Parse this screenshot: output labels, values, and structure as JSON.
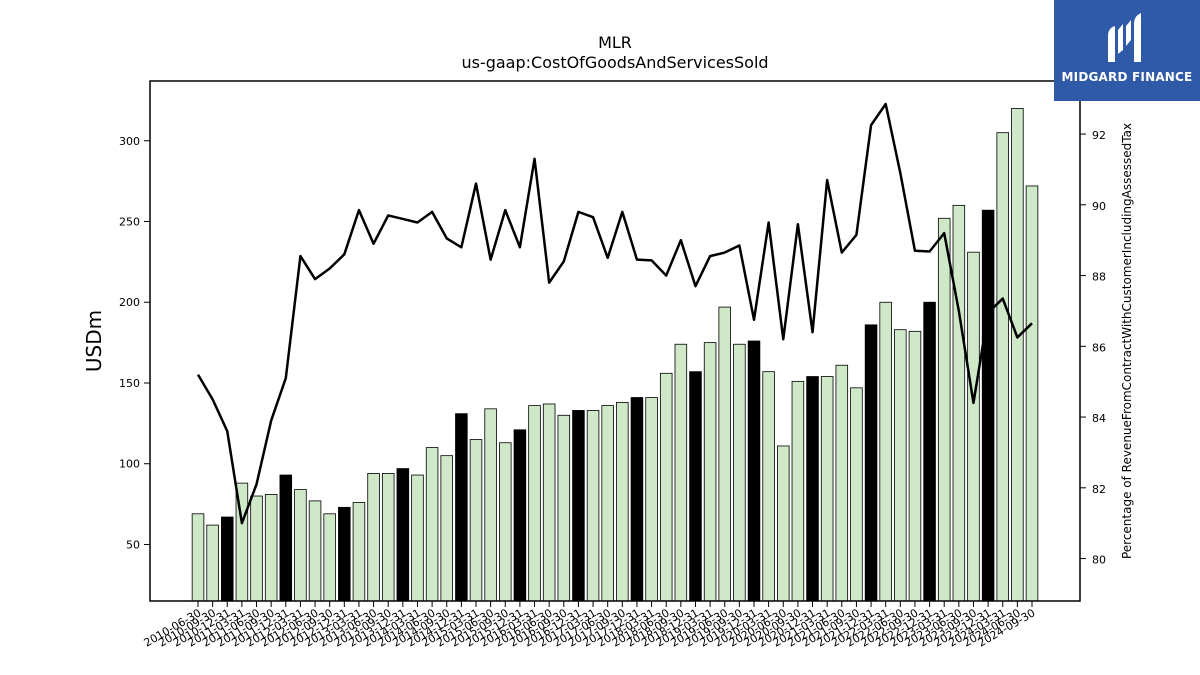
{
  "chart_data": {
    "type": "bar",
    "title": "MLR",
    "subtitle": "us-gaap:CostOfGoodsAndServicesSold",
    "ylabel": "USDm",
    "y2label": "Percentage of RevenueFromContractWithCustomerIncludingAssessedTax",
    "ylim": [
      15,
      337
    ],
    "y2lim": [
      78.8,
      93.5
    ],
    "yticks": [
      50,
      100,
      150,
      200,
      250,
      300
    ],
    "y2ticks": [
      80,
      82,
      84,
      86,
      88,
      90,
      92
    ],
    "colors": {
      "bar": "#cfe8c8",
      "bar_highlight": "#000000",
      "line": "#000000"
    },
    "categories": [
      "2010-06-30",
      "2010-09-30",
      "2010-12-31",
      "2011-03-31",
      "2011-06-30",
      "2011-09-30",
      "2011-12-31",
      "2012-03-31",
      "2012-06-30",
      "2012-09-30",
      "2012-12-31",
      "2013-03-31",
      "2013-06-30",
      "2013-09-30",
      "2013-12-31",
      "2014-03-31",
      "2014-06-30",
      "2014-09-30",
      "2014-12-31",
      "2015-03-31",
      "2015-06-30",
      "2015-09-30",
      "2015-12-31",
      "2016-03-31",
      "2016-06-30",
      "2016-09-30",
      "2016-12-31",
      "2017-03-31",
      "2017-06-30",
      "2017-09-30",
      "2017-12-31",
      "2018-03-31",
      "2018-06-30",
      "2018-09-30",
      "2018-12-31",
      "2019-03-31",
      "2019-06-30",
      "2019-09-30",
      "2019-12-31",
      "2020-03-31",
      "2020-06-30",
      "2020-09-30",
      "2020-12-31",
      "2021-03-31",
      "2021-06-30",
      "2021-09-30",
      "2021-12-31",
      "2022-03-31",
      "2022-06-30",
      "2022-09-30",
      "2022-12-31",
      "2023-03-31",
      "2023-06-30",
      "2023-09-30",
      "2023-12-31",
      "2024-03-31",
      "2024-06-30",
      "2024-09-30"
    ],
    "xtick_labels": [
      "2010-06-30",
      "2010-09-30",
      "2010-12-31",
      "2011-03-31",
      "2011-06-30",
      "2011-09-30",
      "2011-12-31",
      "2012-03-31",
      "2012-06-30",
      "2012-09-30",
      "2012-12-31",
      "2013-03-31",
      "2013-06-30",
      "2013-09-30",
      "2013-12-31",
      "2014-03-31",
      "2014-06-30",
      "2014-09-30",
      "2014-12-31",
      "2015-03-31",
      "2015-06-30",
      "2015-09-30",
      "2015-12-31",
      "2016-03-31",
      "2016-06-30",
      "2016-09-30",
      "2016-12-31",
      "2017-03-31",
      "2017-06-30",
      "2017-09-30",
      "2017-12-31",
      "2018-03-31",
      "2018-06-30",
      "2018-09-30",
      "2018-12-31",
      "2019-03-31",
      "2019-06-30",
      "2019-09-30",
      "2019-12-31",
      "2020-03-31",
      "2020-06-30",
      "2020-09-30",
      "2020-12-31",
      "2021-03-31",
      "2021-06-30",
      "2021-09-30",
      "2021-12-31",
      "2022-03-31",
      "2022-06-30",
      "2022-09-30",
      "2022-12-31",
      "2023-03-31",
      "2023-06-30",
      "2023-09-30",
      "2023-12-31",
      "2024-03-31",
      "2024-06-30",
      "2024-09-30"
    ],
    "bar_values": [
      69,
      62,
      67,
      88,
      80,
      81,
      93,
      84,
      77,
      69,
      73,
      76,
      94,
      94,
      97,
      93,
      110,
      105,
      131,
      115,
      134,
      113,
      121,
      136,
      137,
      130,
      133,
      133,
      136,
      138,
      141,
      141,
      156,
      174,
      157,
      175,
      197,
      174,
      176,
      157,
      111,
      151,
      154,
      154,
      161,
      147,
      186,
      200,
      183,
      182,
      200,
      252,
      260,
      231,
      257,
      305,
      320,
      272
    ],
    "highlight": [
      false,
      false,
      true,
      false,
      false,
      false,
      true,
      false,
      false,
      false,
      true,
      false,
      false,
      false,
      true,
      false,
      false,
      false,
      true,
      false,
      false,
      false,
      true,
      false,
      false,
      false,
      true,
      false,
      false,
      false,
      true,
      false,
      false,
      false,
      true,
      false,
      false,
      false,
      true,
      false,
      false,
      false,
      true,
      false,
      false,
      false,
      true,
      false,
      false,
      false,
      true,
      false,
      false,
      false,
      true,
      false,
      false,
      false
    ],
    "line_values": [
      85.2,
      84.5,
      83.6,
      81.0,
      82.1,
      83.9,
      85.1,
      88.55,
      87.9,
      88.2,
      88.6,
      89.85,
      88.9,
      89.7,
      89.6,
      89.5,
      89.8,
      89.05,
      88.8,
      90.6,
      88.45,
      89.85,
      88.8,
      91.3,
      87.8,
      88.4,
      89.8,
      89.65,
      88.5,
      89.8,
      88.45,
      88.43,
      88.0,
      89.0,
      87.7,
      88.55,
      88.65,
      88.85,
      86.75,
      89.5,
      86.2,
      89.45,
      86.4,
      90.7,
      88.65,
      89.15,
      92.25,
      92.85,
      90.9,
      88.7,
      88.68,
      89.2,
      87.0,
      84.4,
      86.95,
      87.35,
      86.25,
      86.65
    ]
  },
  "logo": {
    "text": "MIDGARD FINANCE"
  }
}
